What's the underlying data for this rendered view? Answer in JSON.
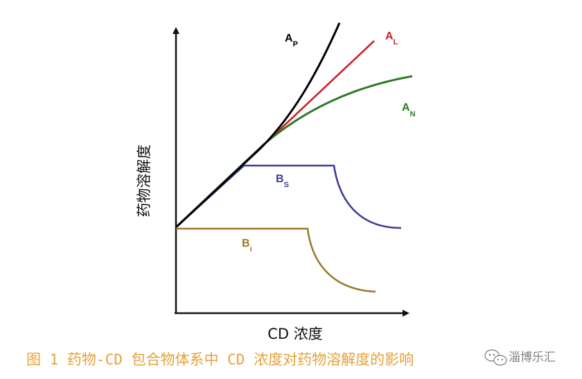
{
  "axes": {
    "x_label": "CD 浓度",
    "y_label": "药物溶解度"
  },
  "curves": [
    {
      "key": "AP",
      "main": "A",
      "sub": "P",
      "color": "#000000"
    },
    {
      "key": "AL",
      "main": "A",
      "sub": "L",
      "color": "#cc1f2a"
    },
    {
      "key": "AN",
      "main": "A",
      "sub": "N",
      "color": "#2e7a28"
    },
    {
      "key": "BS",
      "main": "B",
      "sub": "S",
      "color": "#3c3b96"
    },
    {
      "key": "Bi",
      "main": "B",
      "sub": "i",
      "color": "#9a7a2c"
    }
  ],
  "caption": "图 1 药物-CD 包合物体系中 CD 浓度对药物溶解度的影响",
  "caption_color": "#e5a23a",
  "watermark": "淄博乐汇",
  "watermark_icon": "wechat-icon"
}
